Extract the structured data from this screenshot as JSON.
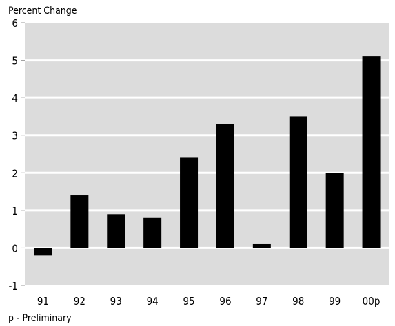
{
  "chart_data": {
    "type": "bar",
    "ylabel": "Percent Change",
    "note": "p - Preliminary",
    "categories": [
      "91",
      "92",
      "93",
      "94",
      "95",
      "96",
      "97",
      "98",
      "99",
      "00p"
    ],
    "values": [
      -0.2,
      1.4,
      0.9,
      0.8,
      2.4,
      3.3,
      0.1,
      3.5,
      2.0,
      5.1
    ],
    "ylim": [
      -1,
      6
    ],
    "yticks": [
      "-1",
      "0",
      "1",
      "2",
      "3",
      "4",
      "5",
      "6"
    ],
    "grid": true,
    "legend": "none",
    "colors": {
      "bar": "#000000",
      "plot_bg": "#dcdcdc",
      "grid": "#ffffff"
    }
  }
}
